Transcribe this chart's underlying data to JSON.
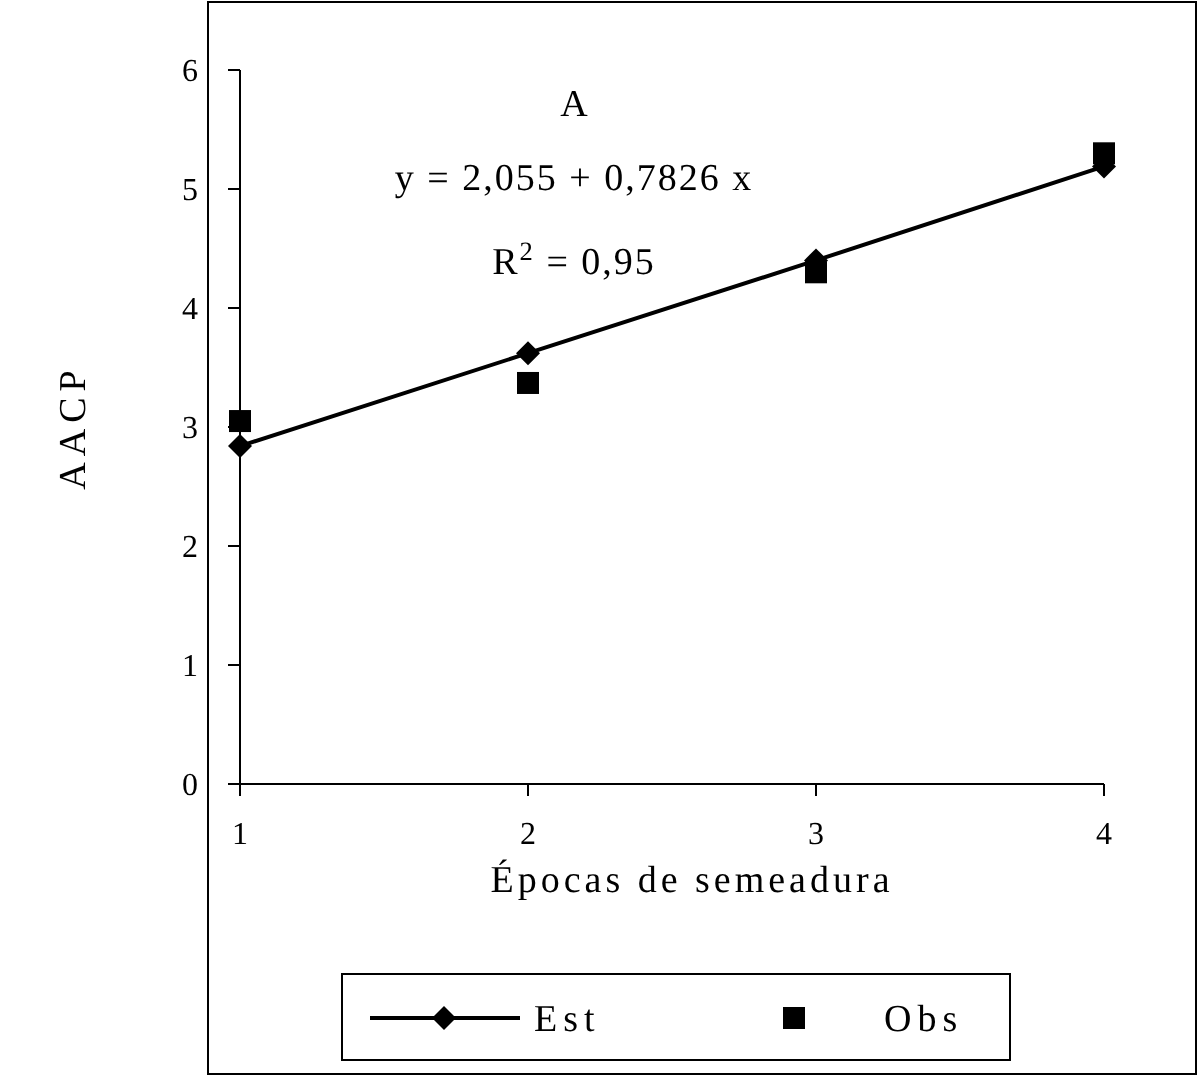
{
  "chart_data": {
    "type": "line",
    "title": "A",
    "xlabel": "Épocas de semeadura",
    "ylabel": "AACP",
    "annotations": [
      "y = 2,055 + 0,7826 x",
      "R$^{2}$ = 0,95"
    ],
    "x": [
      1,
      2,
      3,
      4
    ],
    "xlim": [
      1,
      4
    ],
    "xticks": [
      1,
      2,
      3,
      4
    ],
    "ylim": [
      0,
      6
    ],
    "yticks": [
      0,
      1,
      2,
      3,
      4,
      5,
      6
    ],
    "series": [
      {
        "name": "Est",
        "color": "#000000",
        "marker": "diamond",
        "values": [
          2.84,
          3.62,
          4.4,
          5.19
        ]
      },
      {
        "name": "Obs",
        "type": "scatter",
        "color": "#000000",
        "marker": "square",
        "values": [
          3.05,
          3.37,
          4.3,
          5.3
        ]
      }
    ],
    "grid": false,
    "legend": "bottom"
  }
}
